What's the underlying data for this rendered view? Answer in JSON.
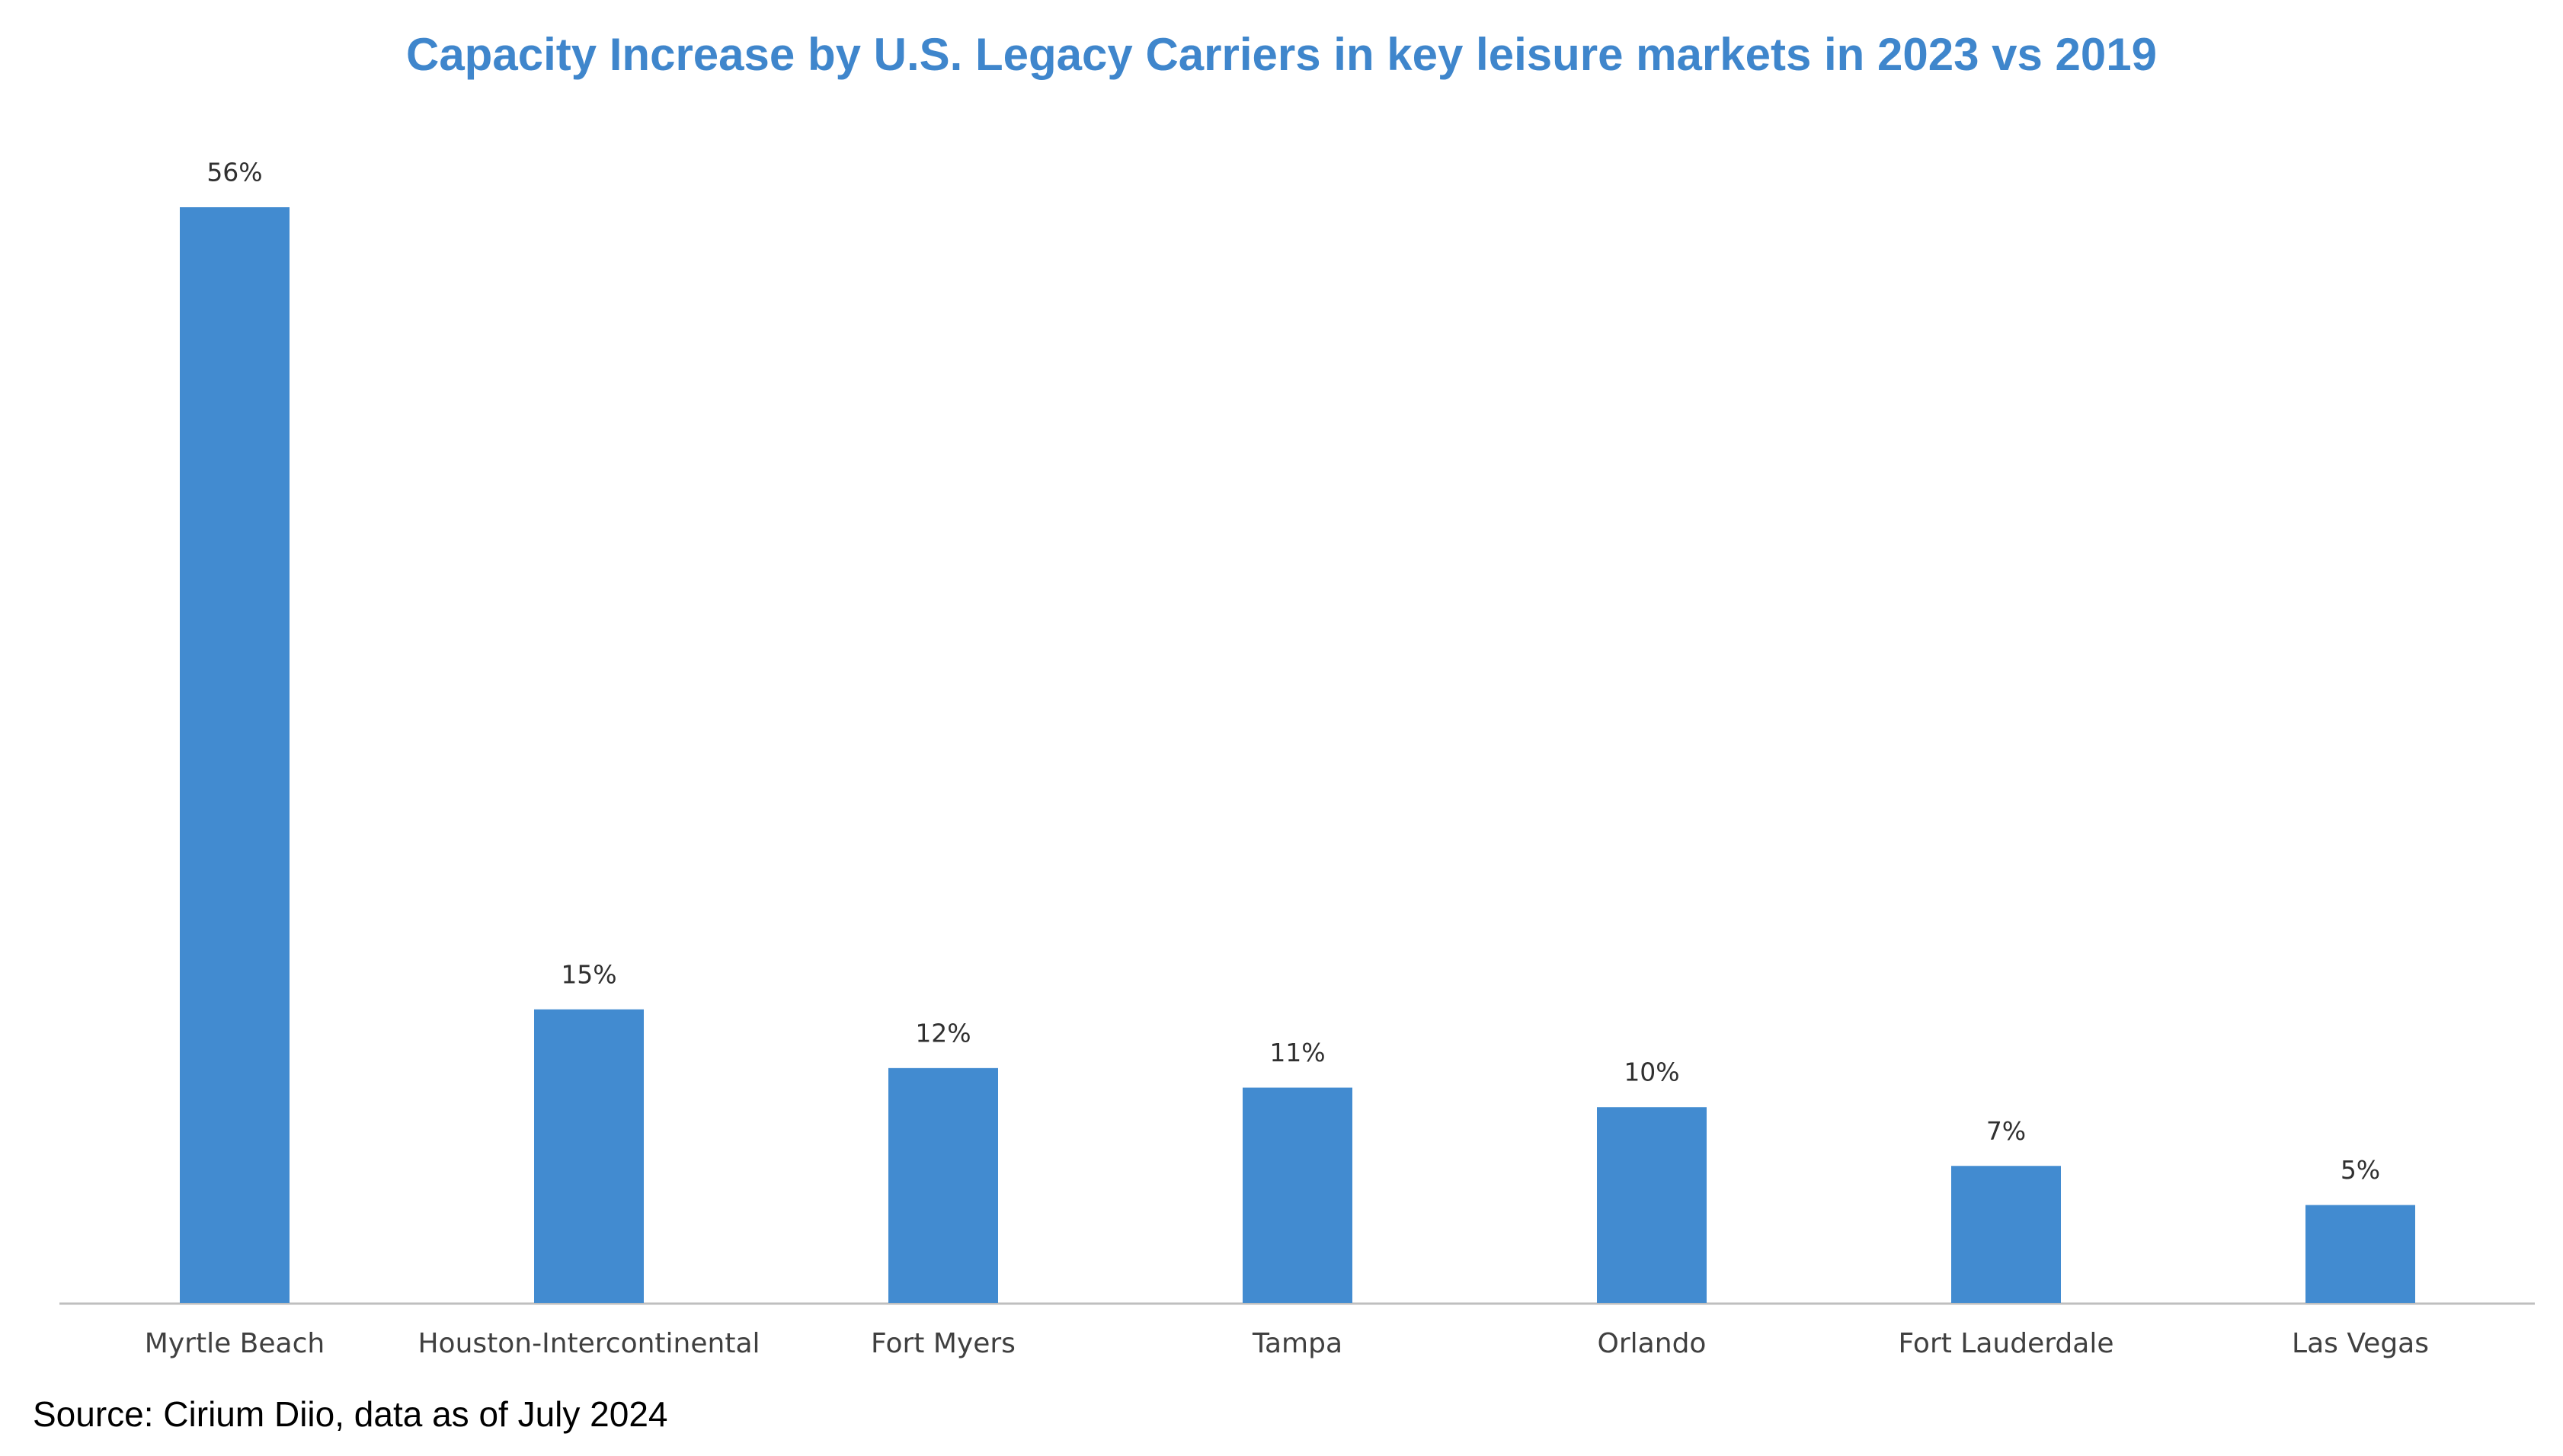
{
  "chart_data": {
    "type": "bar",
    "title": "Capacity Increase by U.S. Legacy Carriers in key leisure markets in 2023 vs 2019",
    "categories": [
      "Myrtle Beach",
      "Houston-Intercontinental",
      "Fort Myers",
      "Tampa",
      "Orlando",
      "Fort Lauderdale",
      "Las Vegas"
    ],
    "values": [
      56,
      15,
      12,
      11,
      10,
      7,
      5
    ],
    "value_labels": [
      "56%",
      "15%",
      "12%",
      "11%",
      "10%",
      "7%",
      "5%"
    ],
    "color": "#428bd0",
    "source": "Source: Cirium Diio, data as of July 2024"
  }
}
